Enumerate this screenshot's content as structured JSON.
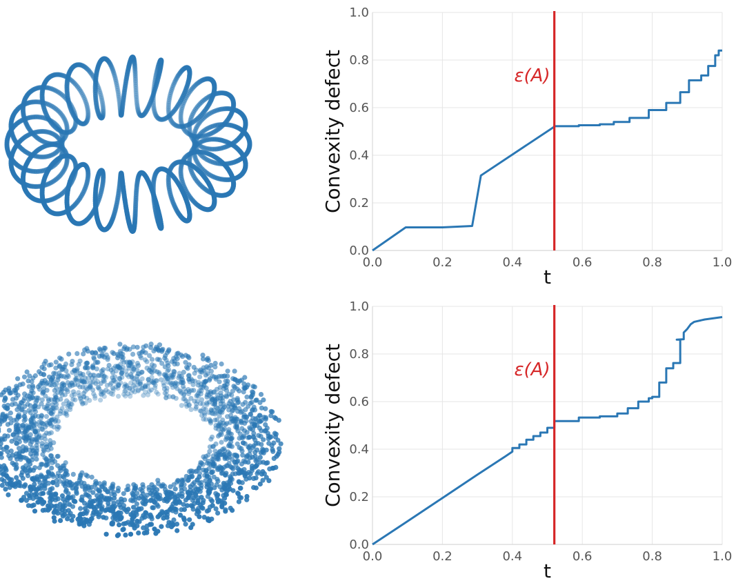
{
  "colors": {
    "series": "#2a77b4",
    "marker": "#d62728",
    "grid": "#e6e6e6",
    "tick": "#555555"
  },
  "chart_data": [
    {
      "type": "scatter",
      "description_kind": "3d-point-cloud-projection",
      "shape": "helical coil wound around a torus",
      "color": "#2a77b4"
    },
    {
      "type": "line",
      "xlabel": "t",
      "ylabel": "Convexity defect",
      "xlim": [
        0,
        1
      ],
      "ylim": [
        0,
        1
      ],
      "xticks": [
        "0.0",
        "0.2",
        "0.4",
        "0.6",
        "0.8",
        "1.0"
      ],
      "yticks": [
        "0.0",
        "0.2",
        "0.4",
        "0.6",
        "0.8",
        "1.0"
      ],
      "grid": true,
      "annotation": {
        "text": "ε(A)",
        "x": 0.52
      },
      "series": [
        {
          "x": [
            0,
            0.095,
            0.2,
            0.285,
            0.31,
            0.52,
            0.52,
            0.59,
            0.59,
            0.65,
            0.65,
            0.69,
            0.69,
            0.735,
            0.735,
            0.79,
            0.79,
            0.84,
            0.84,
            0.88,
            0.88,
            0.905,
            0.905,
            0.94,
            0.94,
            0.96,
            0.96,
            0.98,
            0.98,
            0.99,
            0.99,
            1.0
          ],
          "y": [
            0,
            0.097,
            0.097,
            0.103,
            0.315,
            0.52,
            0.522,
            0.522,
            0.526,
            0.526,
            0.53,
            0.53,
            0.54,
            0.54,
            0.557,
            0.557,
            0.59,
            0.59,
            0.62,
            0.62,
            0.665,
            0.665,
            0.715,
            0.715,
            0.735,
            0.735,
            0.775,
            0.775,
            0.82,
            0.82,
            0.84,
            0.84
          ]
        }
      ]
    },
    {
      "type": "scatter",
      "description_kind": "3d-point-cloud-projection",
      "shape": "points sampled inside a solid torus",
      "color": "#2a77b4"
    },
    {
      "type": "line",
      "xlabel": "t",
      "ylabel": "Convexity defect",
      "xlim": [
        0,
        1
      ],
      "ylim": [
        0,
        1
      ],
      "xticks": [
        "0.0",
        "0.2",
        "0.4",
        "0.6",
        "0.8",
        "1.0"
      ],
      "yticks": [
        "0.0",
        "0.2",
        "0.4",
        "0.6",
        "0.8",
        "1.0"
      ],
      "grid": true,
      "annotation": {
        "text": "ε(A)",
        "x": 0.52
      },
      "series": [
        {
          "x": [
            0,
            0.1,
            0.2,
            0.3,
            0.38,
            0.4,
            0.4,
            0.42,
            0.42,
            0.44,
            0.44,
            0.46,
            0.46,
            0.48,
            0.48,
            0.5,
            0.5,
            0.52,
            0.52,
            0.59,
            0.59,
            0.65,
            0.65,
            0.7,
            0.7,
            0.73,
            0.73,
            0.76,
            0.76,
            0.79,
            0.79,
            0.8,
            0.8,
            0.82,
            0.82,
            0.84,
            0.84,
            0.86,
            0.86,
            0.88,
            0.88,
            0.87,
            0.89,
            0.89,
            0.9,
            0.91,
            0.92,
            0.95,
            1.0
          ],
          "y": [
            0,
            0.097,
            0.195,
            0.293,
            0.37,
            0.39,
            0.405,
            0.405,
            0.42,
            0.42,
            0.44,
            0.44,
            0.455,
            0.455,
            0.47,
            0.47,
            0.49,
            0.49,
            0.518,
            0.518,
            0.533,
            0.533,
            0.538,
            0.538,
            0.55,
            0.55,
            0.572,
            0.572,
            0.6,
            0.6,
            0.614,
            0.614,
            0.62,
            0.62,
            0.68,
            0.68,
            0.74,
            0.74,
            0.762,
            0.762,
            0.86,
            0.86,
            0.862,
            0.89,
            0.905,
            0.925,
            0.935,
            0.945,
            0.955
          ]
        }
      ]
    }
  ]
}
